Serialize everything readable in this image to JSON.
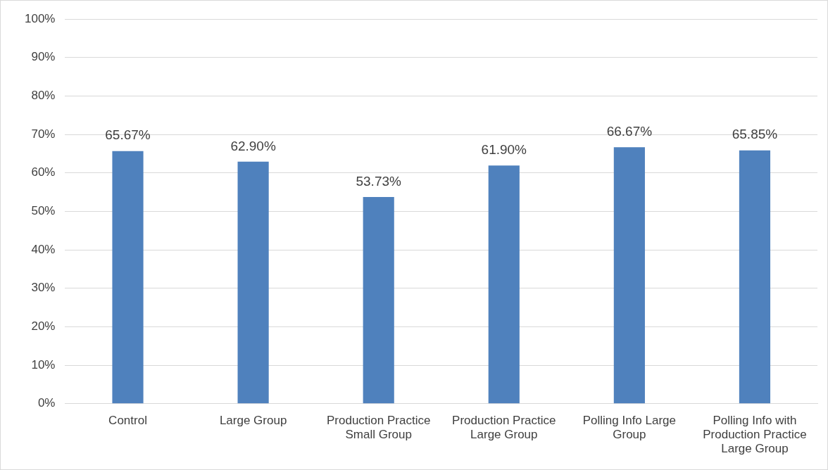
{
  "chart_data": {
    "type": "bar",
    "categories": [
      "Control",
      "Large Group",
      "Production Practice Small Group",
      "Production Practice Large Group",
      "Polling Info Large Group",
      "Polling Info with Production Practice Large Group"
    ],
    "values": [
      65.67,
      62.9,
      53.73,
      61.9,
      66.67,
      65.85
    ],
    "color": "#4f81bd",
    "value_labels": [
      "65.67%",
      "62.90%",
      "53.73%",
      "61.90%",
      "66.67%",
      "65.85%"
    ],
    "ylim": [
      0,
      100
    ],
    "yticks": [
      {
        "value": 0,
        "label": "0%"
      },
      {
        "value": 10,
        "label": "10%"
      },
      {
        "value": 20,
        "label": "20%"
      },
      {
        "value": 30,
        "label": "30%"
      },
      {
        "value": 40,
        "label": "40%"
      },
      {
        "value": 50,
        "label": "50%"
      },
      {
        "value": 60,
        "label": "60%"
      },
      {
        "value": 70,
        "label": "70%"
      },
      {
        "value": 80,
        "label": "80%"
      },
      {
        "value": 90,
        "label": "90%"
      },
      {
        "value": 100,
        "label": "100%"
      }
    ],
    "grid": "y",
    "legend": false
  }
}
